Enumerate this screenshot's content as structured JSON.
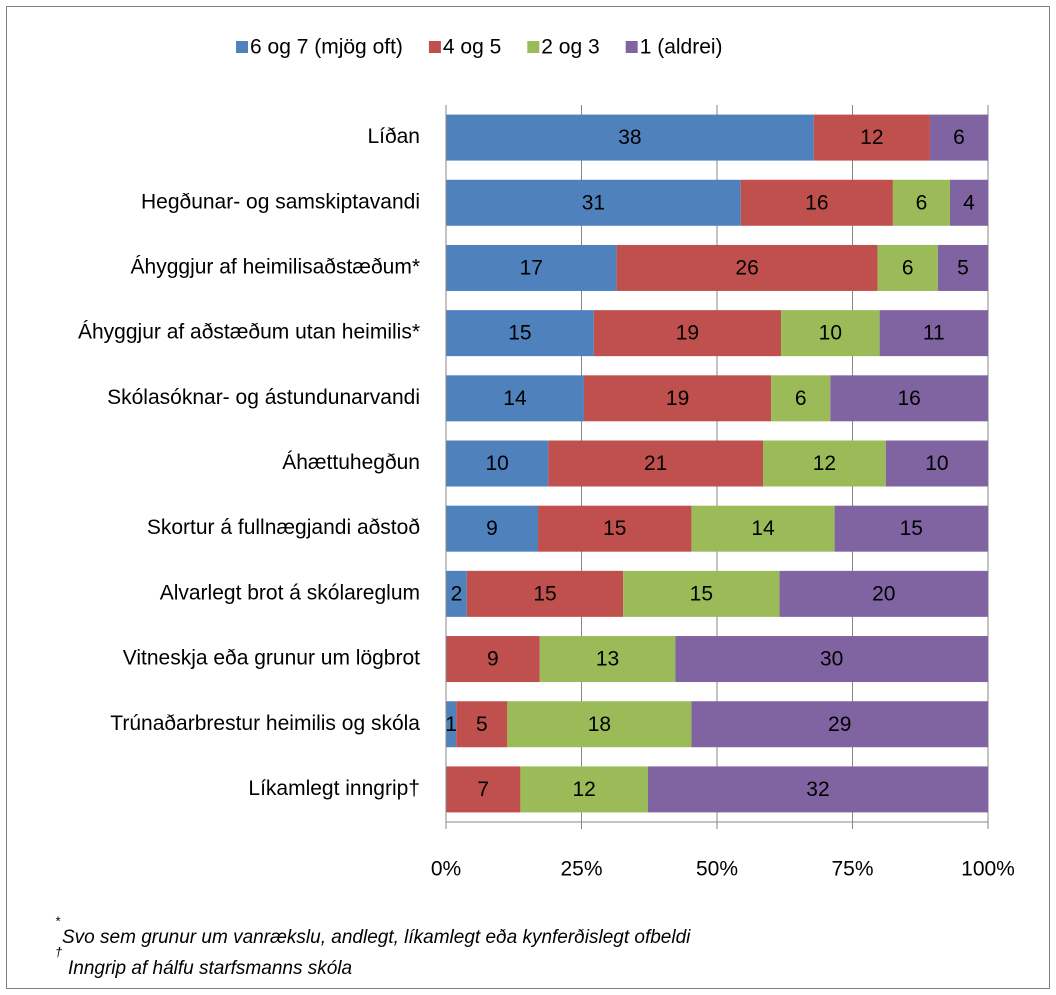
{
  "chart_data": {
    "type": "bar",
    "orientation": "horizontal",
    "stacking": "percent",
    "categories": [
      "Líðan",
      "Hegðunar- og samskiptavandi",
      "Áhyggjur af heimilisaðstæðum*",
      "Áhyggjur af aðstæðum utan heimilis*",
      "Skólasóknar- og ástundunarvandi",
      "Áhættuhegðun",
      "Skortur á fullnægjandi aðstoð",
      "Alvarlegt brot  á skólareglum",
      "Vitneskja eða grunur um lögbrot",
      "Trúnaðarbrestur heimilis og skóla",
      "Líkamlegt inngrip†"
    ],
    "series": [
      {
        "name": "6 og 7 (mjög oft)",
        "color": "#4f81bd",
        "values": [
          38,
          31,
          17,
          15,
          14,
          10,
          9,
          2,
          null,
          1,
          null
        ]
      },
      {
        "name": "4 og 5",
        "color": "#c0504d",
        "values": [
          12,
          16,
          26,
          19,
          19,
          21,
          15,
          15,
          9,
          5,
          7
        ]
      },
      {
        "name": "2 og 3",
        "color": "#9bbb59",
        "values": [
          null,
          6,
          6,
          10,
          6,
          12,
          14,
          15,
          13,
          18,
          12
        ]
      },
      {
        "name": "1 (aldrei)",
        "color": "#8064a2",
        "values": [
          6,
          4,
          5,
          11,
          16,
          10,
          15,
          20,
          30,
          29,
          32
        ]
      }
    ],
    "xlim": [
      0,
      100
    ],
    "xticks": [
      {
        "value": 0,
        "label": "0%"
      },
      {
        "value": 25,
        "label": "25%"
      },
      {
        "value": 50,
        "label": "50%"
      },
      {
        "value": 75,
        "label": "75%"
      },
      {
        "value": 100,
        "label": "100%"
      }
    ],
    "grid": true,
    "legend": "top",
    "footnotes": [
      {
        "mark": "*",
        "text": "Svo sem grunur um vanrækslu, andlegt, líkamlegt eða kynferðislegt ofbeldi"
      },
      {
        "mark": "†",
        "text": "Inngrip af hálfu starfsmanns skóla"
      }
    ]
  }
}
